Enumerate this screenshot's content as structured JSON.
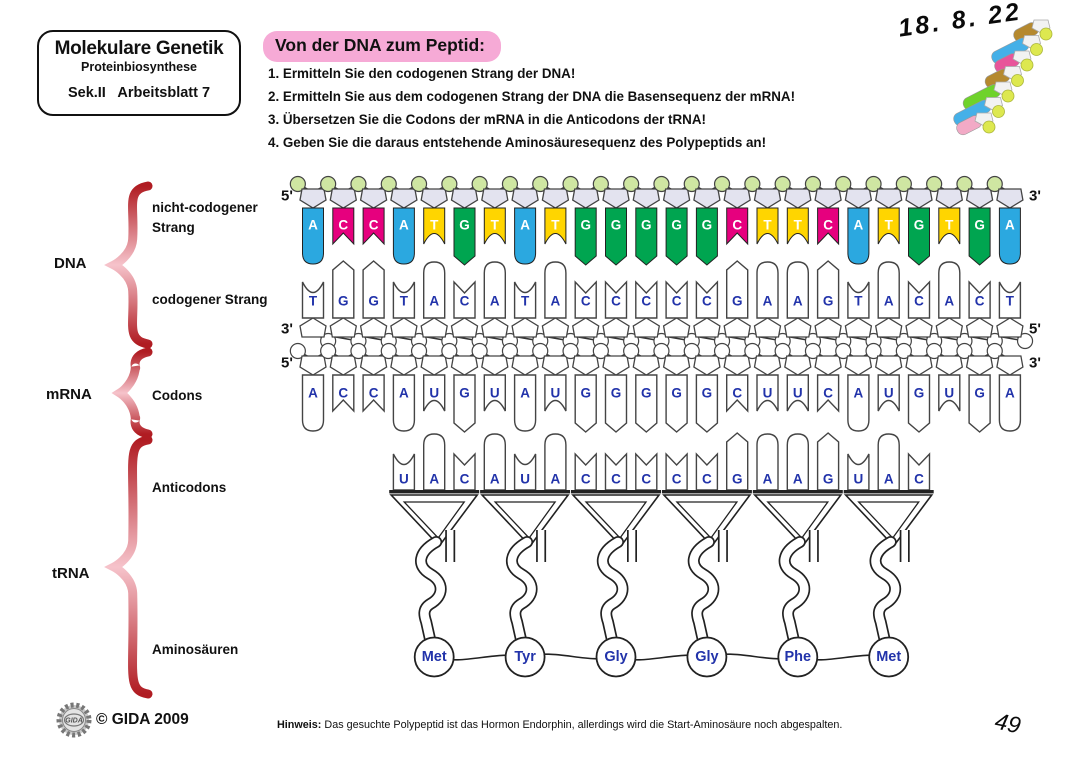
{
  "header_box": {
    "title": "Molekulare Genetik",
    "subtitle": "Proteinbiosynthese",
    "line3": "Sek.II   Arbeitsblatt 7"
  },
  "task": {
    "title": "Von der DNA zum Peptid:",
    "instructions": [
      "1. Ermitteln Sie den codogenen Strang der DNA!",
      "2. Ermitteln Sie aus dem codogenen Strang der DNA die Basensequenz der mRNA!",
      "3. Übersetzen Sie die Codons der mRNA in die Anticodons der tRNA!",
      "4. Geben Sie die daraus entstehende Aminosäuresequenz des Polypeptids an!"
    ]
  },
  "handwriting": {
    "date": "18. 8. 22",
    "page_number": "49"
  },
  "side_labels": {
    "dna_group": "DNA",
    "non_codogenic": "nicht-codogener Strang",
    "codogenic": "codogener Strang",
    "mrna_group": "mRNA",
    "codons": "Codons",
    "trna_group": "tRNA",
    "anticodons": "Anticodons",
    "amino_acids": "Aminosäuren"
  },
  "diagram": {
    "non_codogenic_strand": {
      "five_prime": "5'",
      "three_prime": "3'",
      "sequence": [
        "A",
        "C",
        "C",
        "A",
        "T",
        "G",
        "T",
        "A",
        "T",
        "G",
        "G",
        "G",
        "G",
        "G",
        "C",
        "T",
        "T",
        "C",
        "A",
        "T",
        "G",
        "T",
        "G",
        "A"
      ]
    },
    "codogenic_strand": {
      "three_prime": "3'",
      "five_prime": "5'",
      "sequence": [
        "T",
        "G",
        "G",
        "T",
        "A",
        "C",
        "A",
        "T",
        "A",
        "C",
        "C",
        "C",
        "C",
        "C",
        "G",
        "A",
        "A",
        "G",
        "T",
        "A",
        "C",
        "A",
        "C",
        "T"
      ]
    },
    "mrna_strand": {
      "five_prime": "5'",
      "three_prime": "3'",
      "sequence": [
        "A",
        "C",
        "C",
        "A",
        "U",
        "G",
        "U",
        "A",
        "U",
        "G",
        "G",
        "G",
        "G",
        "G",
        "C",
        "U",
        "U",
        "C",
        "A",
        "U",
        "G",
        "U",
        "G",
        "A"
      ]
    },
    "trnas": [
      {
        "anticodon": [
          "U",
          "A",
          "C"
        ],
        "amino_acid": "Met"
      },
      {
        "anticodon": [
          "A",
          "U",
          "A"
        ],
        "amino_acid": "Tyr"
      },
      {
        "anticodon": [
          "C",
          "C",
          "C"
        ],
        "amino_acid": "Gly"
      },
      {
        "anticodon": [
          "C",
          "C",
          "G"
        ],
        "amino_acid": "Gly"
      },
      {
        "anticodon": [
          "A",
          "A",
          "G"
        ],
        "amino_acid": "Phe"
      },
      {
        "anticodon": [
          "U",
          "A",
          "C"
        ],
        "amino_acid": "Met"
      }
    ]
  },
  "footer": {
    "logo_text": "GIDA",
    "copyright": "© GIDA 2009",
    "hint_label": "Hinweis:",
    "hint_text": " Das gesuchte Polypeptid ist das Hormon Endorphin, allerdings wird die Start-Aminosäure noch abgespalten."
  },
  "colors": {
    "A": "#2ba8e0",
    "C": "#e6007e",
    "G": "#00a550",
    "T": "#ffd500",
    "U": "#ffd500",
    "phosphate": "#cfe6a2",
    "sugar": "#e3e3ef",
    "letter_blue": "#2233aa",
    "brace_red": "#c2202a",
    "title_pink": "#f6aad6"
  },
  "decoration": {
    "dna_colors": [
      "#b5892f",
      "#45b0e8",
      "#e8559a",
      "#b5892f",
      "#6fd22b",
      "#45b0e8",
      "#f2aac6"
    ]
  }
}
